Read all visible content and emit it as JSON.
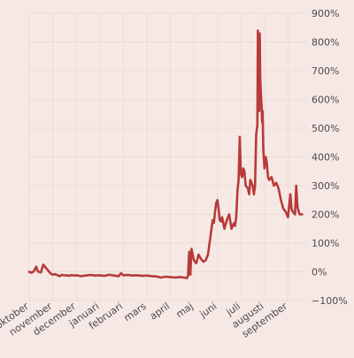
{
  "chart_data": {
    "type": "line",
    "title": "",
    "xlabel": "",
    "ylabel": "",
    "y_axis_side": "right",
    "ylim": [
      -100,
      900
    ],
    "y_ticks": [
      -100,
      0,
      100,
      200,
      300,
      400,
      500,
      600,
      700,
      800,
      900
    ],
    "y_tick_labels": [
      "−100%",
      "0%",
      "100%",
      "200%",
      "300%",
      "400%",
      "500%",
      "600%",
      "700%",
      "800%",
      "900%"
    ],
    "grid": true,
    "line_color": "#b83a3a",
    "month_ticks": [
      {
        "x": 0.0,
        "label": "oktober"
      },
      {
        "x": 1.0,
        "label": "november"
      },
      {
        "x": 2.0,
        "label": "december"
      },
      {
        "x": 3.0,
        "label": "januari"
      },
      {
        "x": 4.0,
        "label": "februari"
      },
      {
        "x": 5.0,
        "label": "mars"
      },
      {
        "x": 6.0,
        "label": "april"
      },
      {
        "x": 7.0,
        "label": "maj"
      },
      {
        "x": 8.0,
        "label": "juni"
      },
      {
        "x": 9.0,
        "label": "juli"
      },
      {
        "x": 10.0,
        "label": "augusti"
      },
      {
        "x": 11.0,
        "label": "september"
      }
    ],
    "xlim": [
      0,
      11.85
    ],
    "series": [
      {
        "x": [
          0.0,
          0.1,
          0.2,
          0.3,
          0.35,
          0.4,
          0.5,
          0.55,
          0.6,
          0.7,
          0.8,
          0.9,
          1.0,
          1.1,
          1.2,
          1.3,
          1.4,
          1.5,
          1.6,
          1.7,
          1.8,
          1.9,
          2.0,
          2.2,
          2.4,
          2.6,
          2.8,
          3.0,
          3.2,
          3.4,
          3.6,
          3.8,
          3.9,
          4.0,
          4.2,
          4.4,
          4.6,
          4.8,
          5.0,
          5.2,
          5.4,
          5.6,
          5.8,
          6.0,
          6.2,
          6.4,
          6.6,
          6.7,
          6.75,
          6.8,
          6.85,
          6.9,
          7.0,
          7.1,
          7.2,
          7.3,
          7.4,
          7.5,
          7.6,
          7.7,
          7.8,
          7.85,
          7.9,
          7.95,
          8.0,
          8.05,
          8.1,
          8.15,
          8.2,
          8.3,
          8.4,
          8.5,
          8.6,
          8.7,
          8.75,
          8.8,
          8.85,
          8.9,
          8.95,
          9.0,
          9.05,
          9.1,
          9.15,
          9.2,
          9.3,
          9.35,
          9.4,
          9.5,
          9.55,
          9.6,
          9.65,
          9.7,
          9.72,
          9.75,
          9.78,
          9.8,
          9.82,
          9.85,
          9.88,
          9.9,
          9.92,
          9.95,
          10.0,
          10.05,
          10.1,
          10.15,
          10.2,
          10.3,
          10.4,
          10.5,
          10.6,
          10.7,
          10.8,
          10.9,
          11.0,
          11.1,
          11.15,
          11.2,
          11.25,
          11.3,
          11.35,
          11.4,
          11.45,
          11.5,
          11.55,
          11.6
        ],
        "y": [
          0,
          -3,
          2,
          18,
          5,
          0,
          -2,
          12,
          25,
          15,
          5,
          -5,
          -10,
          -8,
          -12,
          -15,
          -10,
          -13,
          -12,
          -14,
          -11,
          -13,
          -12,
          -15,
          -13,
          -11,
          -13,
          -12,
          -14,
          -10,
          -13,
          -15,
          -5,
          -12,
          -11,
          -13,
          -12,
          -14,
          -13,
          -15,
          -16,
          -20,
          -17,
          -18,
          -20,
          -18,
          -20,
          -22,
          -15,
          70,
          -10,
          80,
          40,
          30,
          60,
          45,
          35,
          40,
          60,
          120,
          180,
          170,
          210,
          240,
          250,
          220,
          180,
          175,
          190,
          150,
          180,
          200,
          150,
          170,
          160,
          190,
          280,
          320,
          470,
          340,
          330,
          360,
          350,
          300,
          290,
          270,
          320,
          300,
          270,
          300,
          480,
          510,
          840,
          620,
          560,
          830,
          680,
          620,
          580,
          520,
          560,
          430,
          360,
          400,
          380,
          330,
          320,
          330,
          300,
          310,
          290,
          250,
          220,
          210,
          190,
          270,
          220,
          210,
          205,
          200,
          300,
          230,
          210,
          200,
          200,
          200
        ]
      }
    ]
  }
}
